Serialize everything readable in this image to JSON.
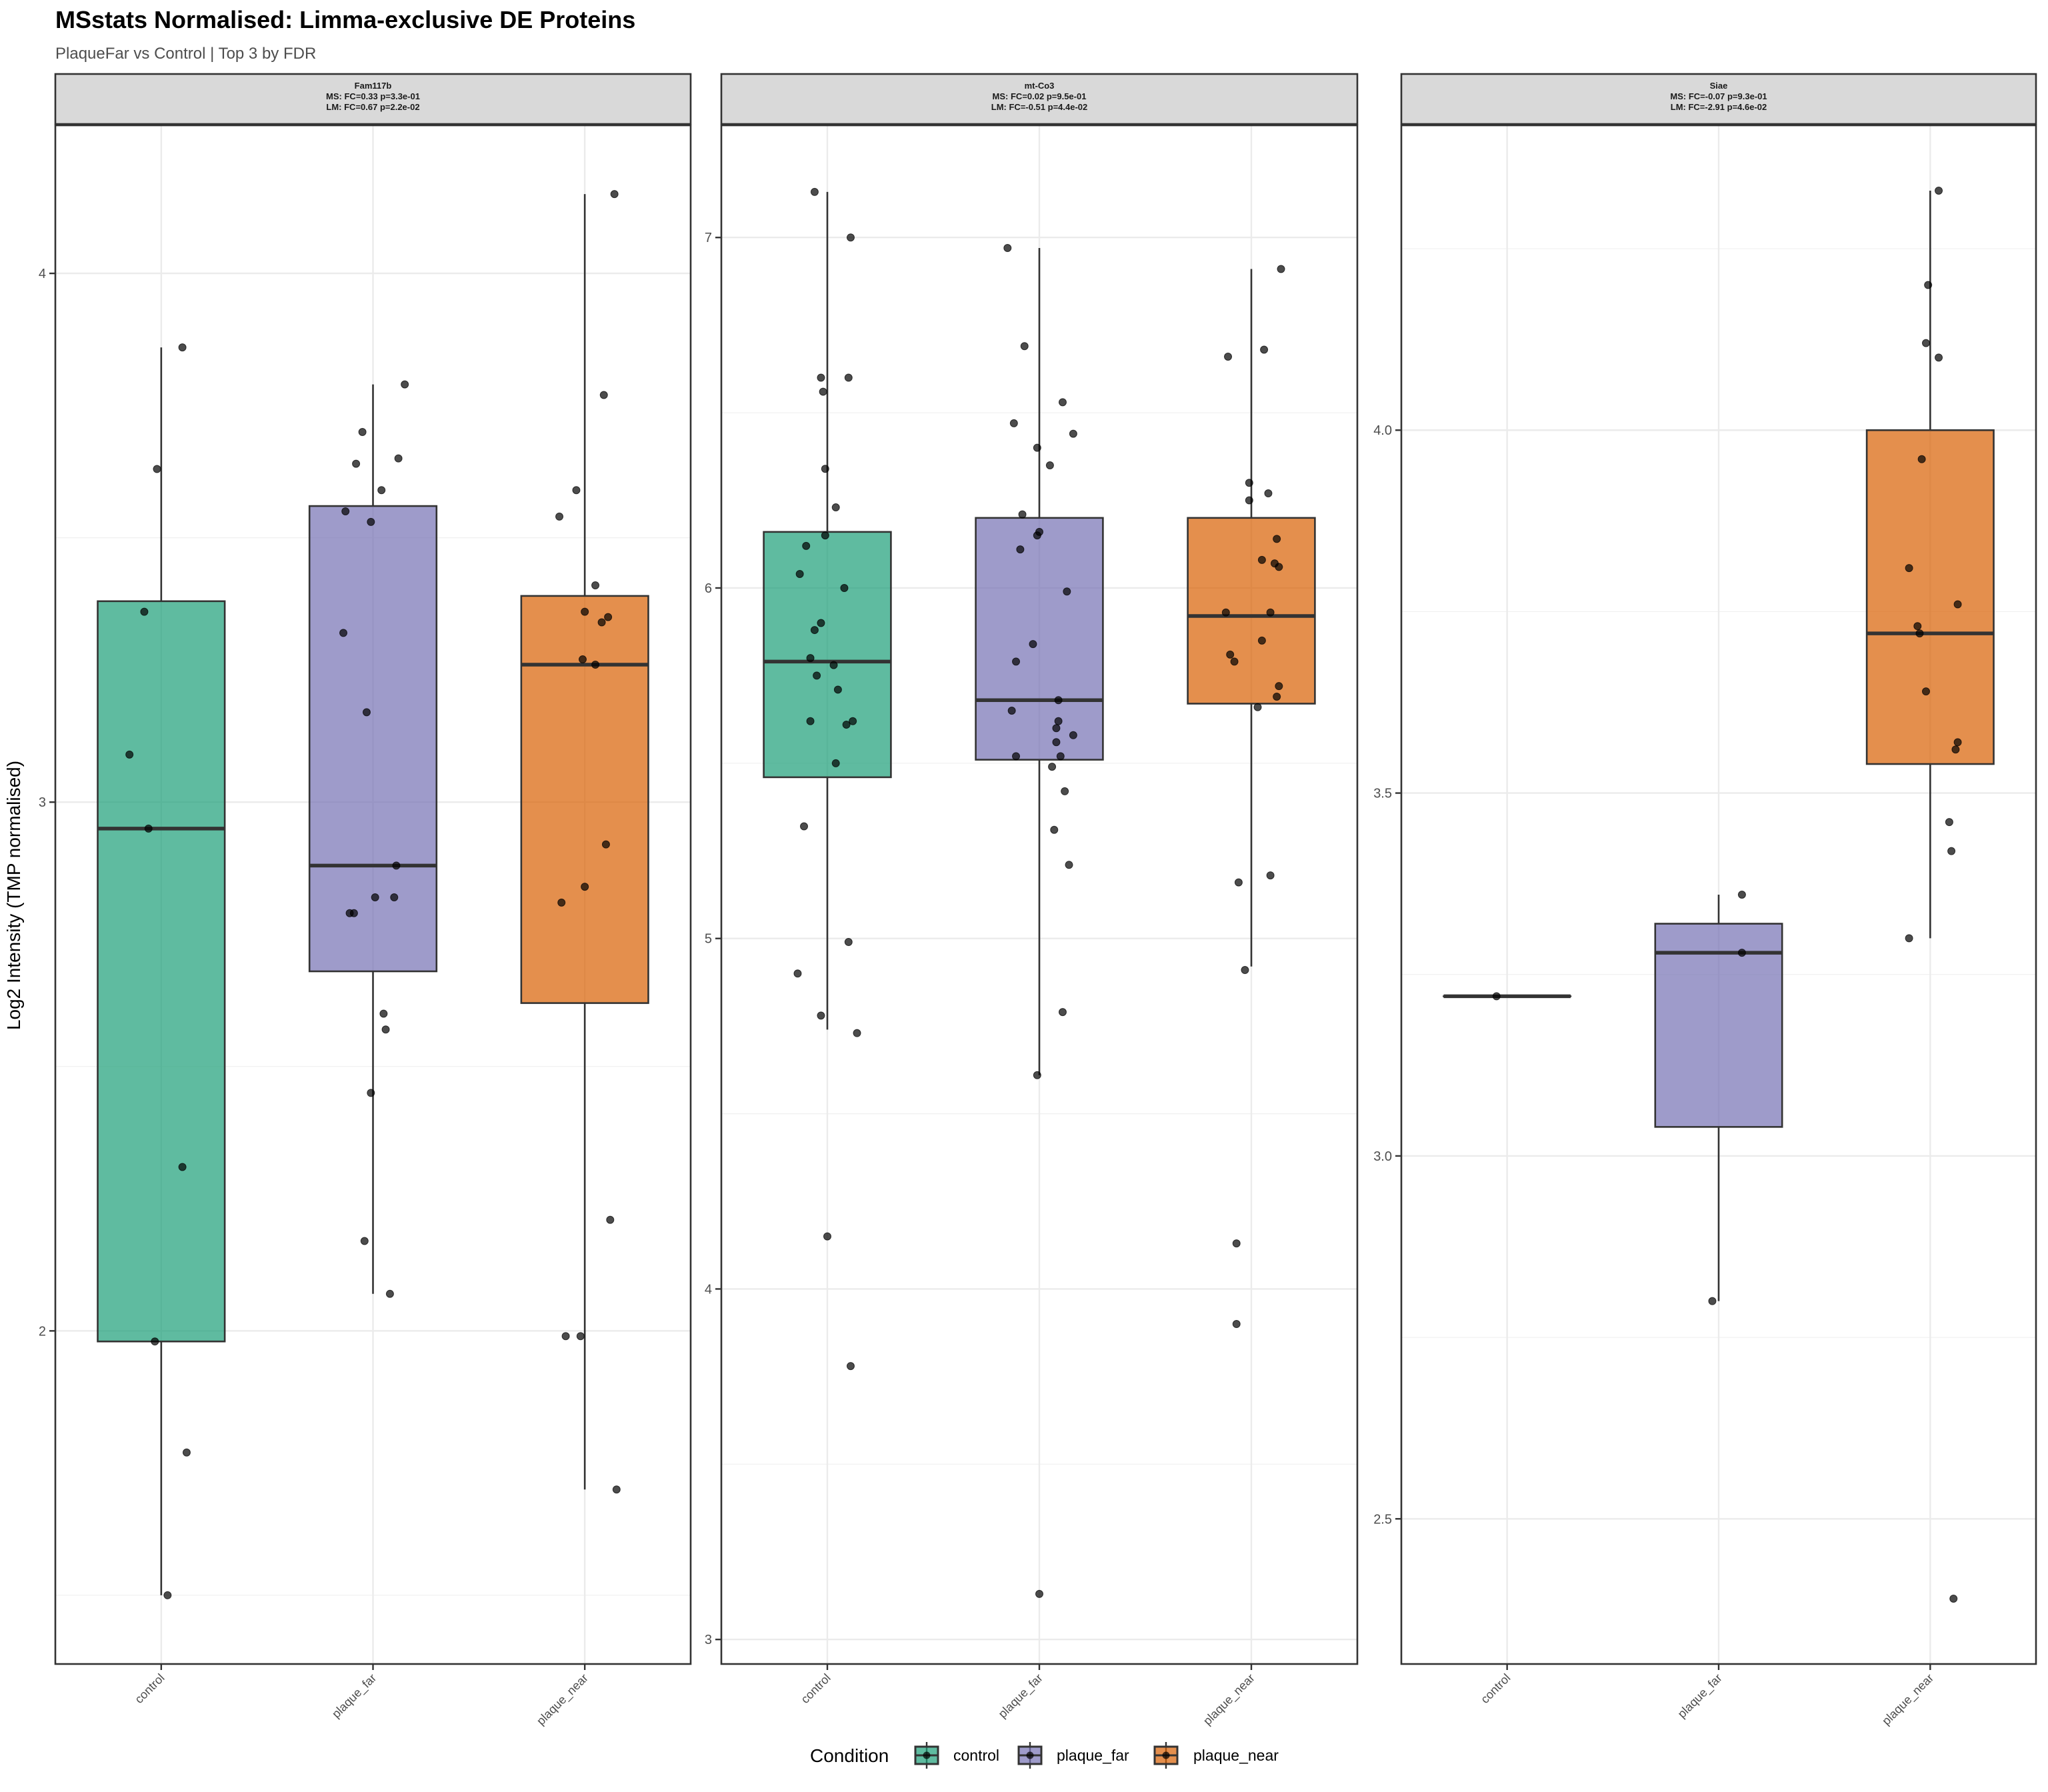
{
  "chart_data": {
    "type": "box",
    "title": "MSstats Normalised: Limma-exclusive DE Proteins",
    "subtitle": "PlaqueFar vs Control | Top 3 by FDR",
    "ylabel": "Log2 Intensity (TMP normalised)",
    "xlabel": "",
    "categories": [
      "control",
      "plaque_far",
      "plaque_near"
    ],
    "legend": {
      "title": "Condition",
      "position": "bottom",
      "entries": [
        {
          "label": "control",
          "color": "#1b9e77"
        },
        {
          "label": "plaque_far",
          "color": "#7570b3"
        },
        {
          "label": "plaque_near",
          "color": "#d95f02"
        }
      ]
    },
    "facet_scales": "free_y",
    "grid": true,
    "panels": [
      {
        "protein": "Fam117b",
        "strip_lines": [
          "Fam117b",
          "MS: FC=0.33 p=3.3e-01",
          "LM: FC=0.67 p=2.2e-02"
        ],
        "ylim": [
          1.37,
          4.28
        ],
        "yticks": [
          2,
          3,
          4
        ],
        "ytick_labels": [
          "2",
          "3",
          "4"
        ],
        "minor_ticks": [
          1.5,
          2.5,
          3.5
        ],
        "groups": [
          {
            "category": "control",
            "box": {
              "lower_whisker": 1.5,
              "q1": 1.98,
              "median": 2.95,
              "q3": 3.38,
              "upper_whisker": 3.86
            },
            "points": [
              3.86,
              3.63,
              3.36,
              3.09,
              2.95,
              2.31,
              1.98,
              1.77,
              1.5
            ],
            "jitter": [
              0.1,
              -0.02,
              -0.08,
              -0.15,
              -0.06,
              0.1,
              -0.03,
              0.12,
              0.03
            ]
          },
          {
            "category": "plaque_far",
            "box": {
              "lower_whisker": 2.07,
              "q1": 2.68,
              "median": 2.88,
              "q3": 3.56,
              "upper_whisker": 3.79
            },
            "points": [
              3.79,
              3.7,
              3.65,
              3.64,
              3.59,
              3.55,
              3.53,
              3.32,
              3.17,
              2.88,
              2.82,
              2.82,
              2.79,
              2.79,
              2.6,
              2.57,
              2.45,
              2.17,
              2.07
            ],
            "jitter": [
              0.15,
              -0.05,
              0.12,
              -0.08,
              0.04,
              -0.13,
              -0.01,
              -0.14,
              -0.03,
              0.11,
              0.01,
              0.1,
              -0.11,
              -0.09,
              0.05,
              0.06,
              -0.01,
              -0.04,
              0.08
            ]
          },
          {
            "category": "plaque_near",
            "box": {
              "lower_whisker": 1.7,
              "q1": 2.62,
              "median": 3.26,
              "q3": 3.39,
              "upper_whisker": 4.15
            },
            "points": [
              4.15,
              3.77,
              3.59,
              3.54,
              3.41,
              3.36,
              3.35,
              3.34,
              3.27,
              3.26,
              2.92,
              2.84,
              2.81,
              2.21,
              1.99,
              1.99,
              1.7
            ],
            "jitter": [
              0.14,
              0.09,
              -0.04,
              -0.12,
              0.05,
              0.0,
              0.11,
              0.08,
              -0.01,
              0.05,
              0.1,
              0.0,
              -0.11,
              0.12,
              -0.09,
              -0.02,
              0.15
            ]
          }
        ]
      },
      {
        "protein": "mt-Co3",
        "strip_lines": [
          "mt-Co3",
          "MS: FC=0.02 p=9.5e-01",
          "LM: FC=-0.51 p=4.4e-02"
        ],
        "ylim": [
          2.93,
          7.32
        ],
        "yticks": [
          3,
          4,
          5,
          6,
          7
        ],
        "ytick_labels": [
          "3",
          "4",
          "5",
          "6",
          "7"
        ],
        "minor_ticks": [
          3.5,
          4.5,
          5.5,
          6.5
        ],
        "groups": [
          {
            "category": "control",
            "box": {
              "lower_whisker": 4.74,
              "q1": 5.46,
              "median": 5.79,
              "q3": 6.16,
              "upper_whisker": 7.13
            },
            "points": [
              7.13,
              7.0,
              6.6,
              6.6,
              6.56,
              6.34,
              6.23,
              6.15,
              6.12,
              6.04,
              6.0,
              5.9,
              5.88,
              5.8,
              5.78,
              5.75,
              5.71,
              5.62,
              5.62,
              5.61,
              5.5,
              5.32,
              4.99,
              4.9,
              4.78,
              4.73,
              4.15,
              3.78
            ],
            "jitter": [
              -0.06,
              0.11,
              -0.03,
              0.1,
              -0.02,
              -0.01,
              0.04,
              -0.01,
              -0.1,
              -0.13,
              0.08,
              -0.03,
              -0.06,
              -0.08,
              0.03,
              -0.05,
              0.05,
              -0.08,
              0.12,
              0.09,
              0.04,
              -0.11,
              0.1,
              -0.14,
              -0.03,
              0.14,
              0.0,
              0.11
            ]
          },
          {
            "category": "plaque_far",
            "box": {
              "lower_whisker": 4.61,
              "q1": 5.51,
              "median": 5.68,
              "q3": 6.2,
              "upper_whisker": 6.97
            },
            "points": [
              6.97,
              6.69,
              6.53,
              6.47,
              6.44,
              6.4,
              6.35,
              6.21,
              6.16,
              6.15,
              6.11,
              5.99,
              5.84,
              5.79,
              5.68,
              5.65,
              5.62,
              5.6,
              5.58,
              5.56,
              5.52,
              5.52,
              5.49,
              5.42,
              5.31,
              5.21,
              4.79,
              4.61,
              3.13
            ],
            "jitter": [
              -0.15,
              -0.07,
              0.11,
              -0.12,
              0.16,
              -0.01,
              0.05,
              -0.08,
              0.0,
              -0.01,
              -0.09,
              0.13,
              -0.03,
              -0.11,
              0.09,
              -0.13,
              0.09,
              0.08,
              0.16,
              0.08,
              -0.11,
              0.1,
              0.06,
              0.12,
              0.07,
              0.14,
              0.11,
              -0.01,
              0.0
            ]
          },
          {
            "category": "plaque_near",
            "box": {
              "lower_whisker": 4.92,
              "q1": 5.67,
              "median": 5.92,
              "q3": 6.2,
              "upper_whisker": 6.91
            },
            "points": [
              6.91,
              6.68,
              6.66,
              6.3,
              6.27,
              6.25,
              6.14,
              6.08,
              6.07,
              6.06,
              5.93,
              5.93,
              5.85,
              5.81,
              5.79,
              5.72,
              5.69,
              5.66,
              5.18,
              5.16,
              4.91,
              4.13,
              3.9
            ],
            "jitter": [
              0.14,
              0.06,
              -0.11,
              -0.01,
              0.08,
              -0.01,
              0.12,
              0.05,
              0.11,
              0.13,
              -0.12,
              0.09,
              0.05,
              -0.1,
              -0.08,
              0.13,
              0.12,
              0.03,
              0.09,
              -0.06,
              -0.03,
              -0.07,
              -0.07
            ]
          }
        ]
      },
      {
        "protein": "Siae",
        "strip_lines": [
          "Siae",
          "MS: FC=-0.07 p=9.3e-01",
          "LM: FC=-2.91 p=4.6e-02"
        ],
        "ylim": [
          2.3,
          4.42
        ],
        "yticks": [
          2.5,
          3.0,
          3.5,
          4.0
        ],
        "ytick_labels": [
          "2.5",
          "3.0",
          "3.5",
          "4.0"
        ],
        "minor_ticks": [
          2.75,
          3.25,
          3.75,
          4.25
        ],
        "groups": [
          {
            "category": "control",
            "box": {
              "lower_whisker": 3.22,
              "q1": 3.22,
              "median": 3.22,
              "q3": 3.22,
              "upper_whisker": 3.22
            },
            "points": [
              3.22
            ],
            "jitter": [
              -0.05
            ]
          },
          {
            "category": "plaque_far",
            "box": {
              "lower_whisker": 2.8,
              "q1": 3.04,
              "median": 3.28,
              "q3": 3.32,
              "upper_whisker": 3.36
            },
            "points": [
              3.36,
              3.28,
              2.8
            ],
            "jitter": [
              0.11,
              0.11,
              -0.03
            ]
          },
          {
            "category": "plaque_near",
            "box": {
              "lower_whisker": 3.3,
              "q1": 3.54,
              "median": 3.72,
              "q3": 4.0,
              "upper_whisker": 4.33
            },
            "points": [
              4.33,
              4.2,
              4.12,
              4.1,
              3.96,
              3.81,
              3.76,
              3.73,
              3.72,
              3.64,
              3.57,
              3.56,
              3.46,
              3.42,
              3.3,
              2.39
            ],
            "jitter": [
              0.04,
              -0.01,
              -0.02,
              0.04,
              -0.04,
              -0.1,
              0.13,
              -0.06,
              -0.05,
              -0.02,
              0.13,
              0.12,
              0.09,
              0.1,
              -0.1,
              0.11
            ]
          }
        ]
      }
    ]
  }
}
